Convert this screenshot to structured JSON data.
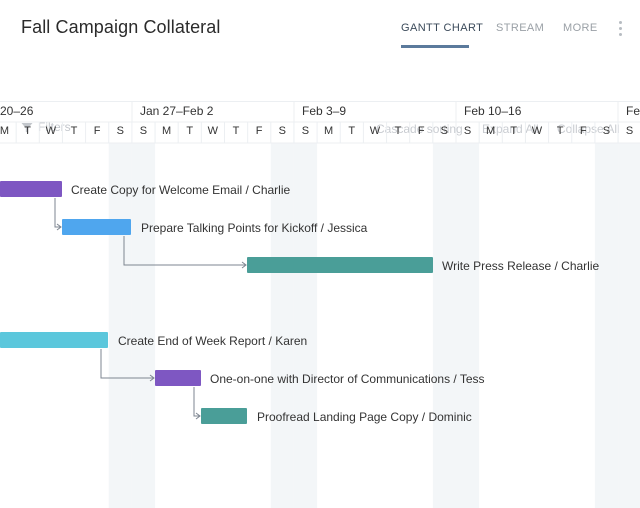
{
  "header": {
    "title": "Fall Campaign Collateral",
    "tabs": [
      {
        "label": "GANTT CHART",
        "active": true
      },
      {
        "label": "STREAM",
        "active": false
      },
      {
        "label": "MORE",
        "active": false
      }
    ],
    "menu_icon": "kebab-menu-icon"
  },
  "toolbar": {
    "filters_label": "Filters",
    "filter_icon": "funnel-icon",
    "cascade_label": "Cascade sorting",
    "expand_label": "Expand All",
    "collapse_label": "Collapse All"
  },
  "timeline": {
    "weeks": [
      "20–26",
      "Jan 27–Feb 2",
      "Feb 3–9",
      "Feb 10–16",
      "Fe"
    ],
    "days": [
      "M",
      "T",
      "W",
      "T",
      "F",
      "S",
      "S",
      "M",
      "T",
      "W",
      "T",
      "F",
      "S",
      "S",
      "M",
      "T",
      "W",
      "T",
      "F",
      "S",
      "S",
      "M",
      "T",
      "W",
      "T",
      "F",
      "S",
      "S"
    ],
    "tasks": [
      {
        "label": "Create Copy for Welcome Email / Charlie",
        "color": "#7e57c2"
      },
      {
        "label": "Prepare Talking Points for Kickoff / Jessica",
        "color": "#4fa6ee"
      },
      {
        "label": "Write Press Release / Charlie",
        "color": "#4a9e98"
      },
      {
        "label": "Create End of Week Report / Karen",
        "color": "#5bc7dc"
      },
      {
        "label": "One-on-one with Director of Communications / Tess",
        "color": "#7e57c2"
      },
      {
        "label": "Proofread Landing Page Copy / Dominic",
        "color": "#4a9e98"
      }
    ]
  },
  "colors": {
    "weekend_shade": "#f3f6f8",
    "grid_line": "#eceff2",
    "active_tab_underline": "#5b7a9c"
  }
}
